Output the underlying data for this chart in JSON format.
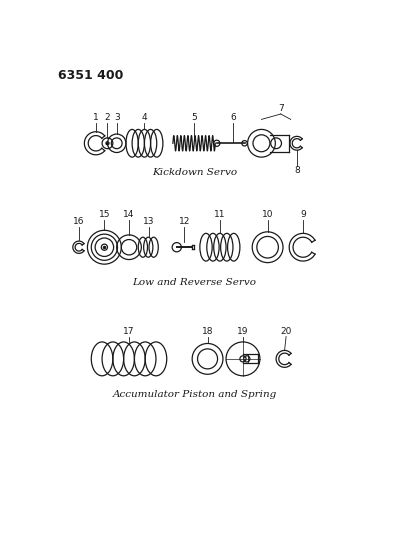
{
  "title_code": "6351 400",
  "background_color": "#ffffff",
  "line_color": "#1a1a1a",
  "section1_label": "Kickdown Servo",
  "section2_label": "Low and Reverse Servo",
  "section3_label": "Accumulator Piston and Spring",
  "figsize": [
    4.08,
    5.33
  ],
  "dpi": 100
}
